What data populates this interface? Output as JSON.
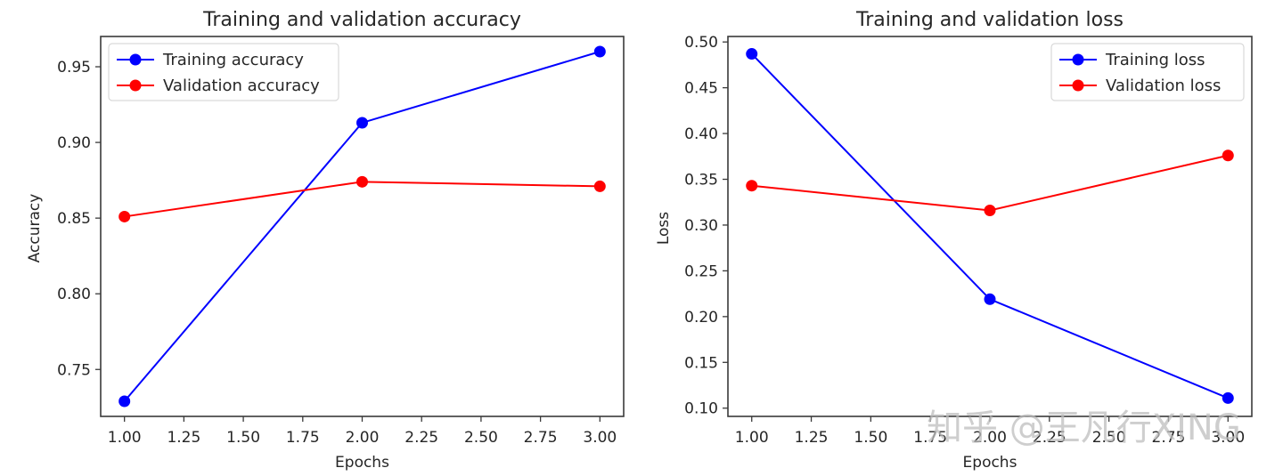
{
  "chart_data": [
    {
      "type": "line",
      "title": "Training and validation accuracy",
      "xlabel": "Epochs",
      "ylabel": "Accuracy",
      "x": [
        1,
        2,
        3
      ],
      "xlim": [
        0.9,
        3.1
      ],
      "ylim": [
        0.719,
        0.97
      ],
      "xticks": [
        "1.00",
        "1.25",
        "1.50",
        "1.75",
        "2.00",
        "2.25",
        "2.50",
        "2.75",
        "3.00"
      ],
      "yticks": [
        "0.75",
        "0.80",
        "0.85",
        "0.90",
        "0.95"
      ],
      "grid": false,
      "legend_position": "upper left",
      "series": [
        {
          "name": "Training accuracy",
          "color": "#0000ff",
          "marker": "circle",
          "values": [
            0.729,
            0.913,
            0.96
          ]
        },
        {
          "name": "Validation accuracy",
          "color": "#ff0000",
          "marker": "circle",
          "values": [
            0.851,
            0.874,
            0.871
          ]
        }
      ]
    },
    {
      "type": "line",
      "title": "Training and validation loss",
      "xlabel": "Epochs",
      "ylabel": "Loss",
      "x": [
        1,
        2,
        3
      ],
      "xlim": [
        0.9,
        3.1
      ],
      "ylim": [
        0.091,
        0.506
      ],
      "xticks": [
        "1.00",
        "1.25",
        "1.50",
        "1.75",
        "2.00",
        "2.25",
        "2.50",
        "2.75",
        "3.00"
      ],
      "yticks": [
        "0.10",
        "0.15",
        "0.20",
        "0.25",
        "0.30",
        "0.35",
        "0.40",
        "0.45",
        "0.50"
      ],
      "grid": false,
      "legend_position": "upper right",
      "series": [
        {
          "name": "Training loss",
          "color": "#0000ff",
          "marker": "circle",
          "values": [
            0.487,
            0.219,
            0.111
          ]
        },
        {
          "name": "Validation loss",
          "color": "#ff0000",
          "marker": "circle",
          "values": [
            0.343,
            0.316,
            0.376
          ]
        }
      ]
    }
  ],
  "watermark": "知乎 @王凡行XING"
}
